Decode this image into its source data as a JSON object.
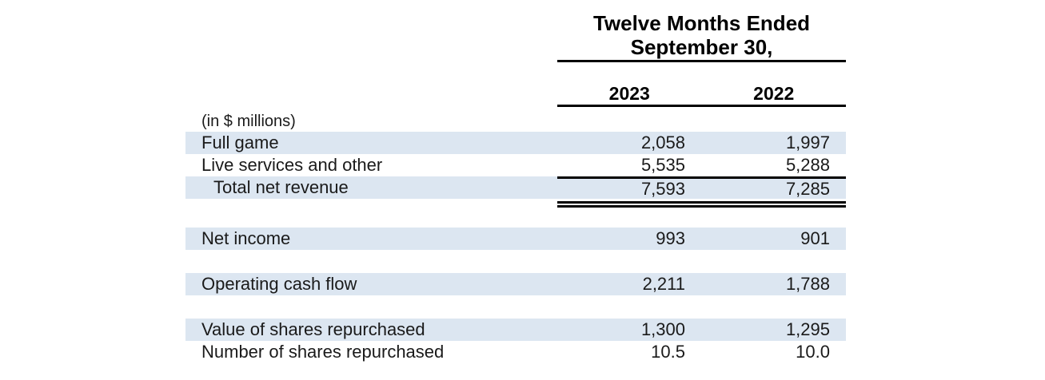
{
  "header": {
    "title_line1": "Twelve Months Ended",
    "title_line2": "September 30,",
    "col_2023": "2023",
    "col_2022": "2022"
  },
  "table": {
    "units_note": "(in $ millions)",
    "rows": [
      {
        "label": "Full game",
        "v2023": "2,058",
        "v2022": "1,997"
      },
      {
        "label": "Live services and other",
        "v2023": "5,535",
        "v2022": "5,288"
      },
      {
        "label": "Total net revenue",
        "v2023": "7,593",
        "v2022": "7,285"
      },
      {
        "label": "Net income",
        "v2023": "993",
        "v2022": "901"
      },
      {
        "label": "Operating cash flow",
        "v2023": "2,211",
        "v2022": "1,788"
      },
      {
        "label": "Value of shares repurchased",
        "v2023": "1,300",
        "v2022": "1,295"
      },
      {
        "label": "Number of shares repurchased",
        "v2023": "10.5",
        "v2022": "10.0"
      }
    ]
  },
  "colors": {
    "row_band": "#dce6f1",
    "text": "#1a1a1a",
    "rule": "#000000"
  }
}
